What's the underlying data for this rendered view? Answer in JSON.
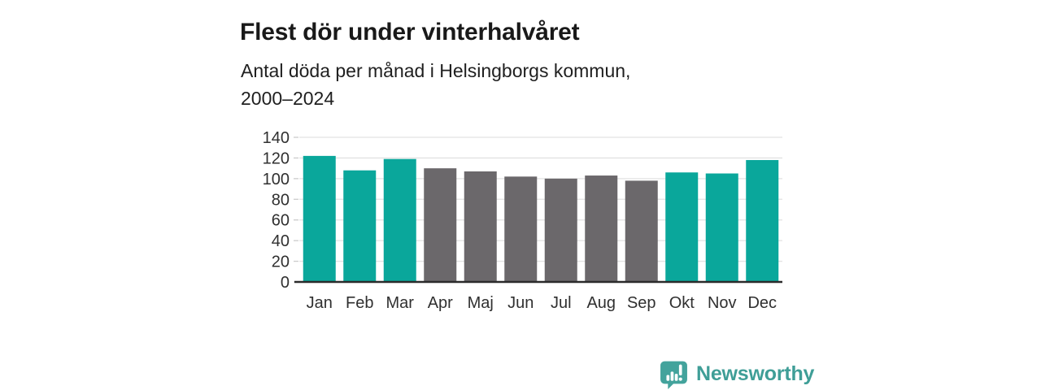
{
  "header": {
    "title": "Flest dör under vinterhalvåret",
    "subtitle_line1": "Antal döda per månad i Helsingborgs kommun,",
    "subtitle_line2": "2000–2024"
  },
  "chart_data": {
    "type": "bar",
    "title": "Flest dör under vinterhalvåret",
    "subtitle": "Antal döda per månad i Helsingborgs kommun, 2000–2024",
    "categories": [
      "Jan",
      "Feb",
      "Mar",
      "Apr",
      "Maj",
      "Jun",
      "Jul",
      "Aug",
      "Sep",
      "Okt",
      "Nov",
      "Dec"
    ],
    "values": [
      122,
      108,
      119,
      110,
      107,
      102,
      100,
      103,
      98,
      106,
      105,
      118
    ],
    "bar_colors": [
      "teal",
      "teal",
      "teal",
      "gray",
      "gray",
      "gray",
      "gray",
      "gray",
      "gray",
      "teal",
      "teal",
      "teal"
    ],
    "colors": {
      "teal": "#0aa79b",
      "gray": "#6b686b"
    },
    "ylim": [
      0,
      140
    ],
    "yticks": [
      0,
      20,
      40,
      60,
      80,
      100,
      120,
      140
    ],
    "grid": true,
    "gridline_color": "#e2e2e2",
    "axis_line_color": "#2b2b2b",
    "tick_label_color": "#303030",
    "xlabel": "",
    "ylabel": "",
    "legend": "none"
  },
  "footer": {
    "brand": "Newsworthy",
    "brand_color": "#3f9e97"
  }
}
